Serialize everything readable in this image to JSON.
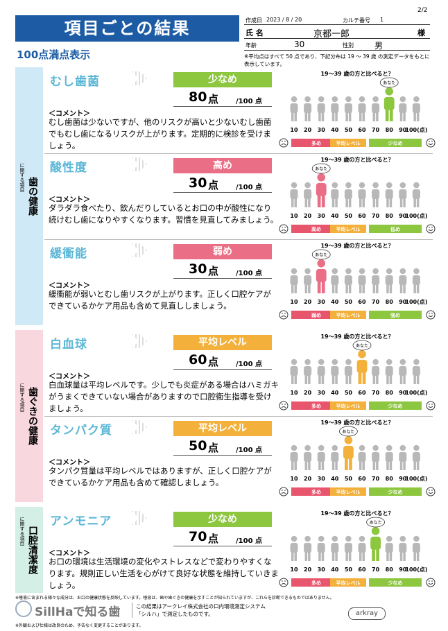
{
  "header": {
    "title": "項目ごとの結果",
    "page": "2/2",
    "subtitle": "100点満点表示",
    "info": {
      "date_label": "作成日",
      "date": "2023 / 8 / 20",
      "chart_no_label": "カルテ番号",
      "chart_no": "1",
      "name_label": "氏 名",
      "name": "京都一郎",
      "honorific": "様",
      "age_label": "年齢",
      "age": "30",
      "sex_label": "性別",
      "sex": "男"
    },
    "note": "※平均点はすべて 50 点であり、下記分布は 19 ～ 39 歳 の測定データをもとに表示しています。"
  },
  "common": {
    "comment_label": "＜コメント＞",
    "unit": "点",
    "max": "/100 点",
    "chart_title": "19～39 歳の方と比べると？",
    "you": "あなた",
    "group_prefix": "に関する項目",
    "bar_colors": [
      "#e8566e",
      "#f3b13b",
      "#8dc63f"
    ],
    "scale": [
      10,
      20,
      30,
      40,
      50,
      60,
      70,
      80,
      90,
      {
        "value": 100,
        "label": "100(点)"
      }
    ]
  },
  "groups": [
    {
      "label": "歯の健康",
      "color": "#d0e9f6",
      "items": [
        {
          "name": "むし歯菌",
          "level": "少なめ",
          "color": "#8dc63f",
          "score": 80,
          "comment": "むし歯菌は少ないですが、他のリスクが高いと少ないむし歯菌でもむし歯になるリスクが上がります。定期的に検診を受けましょう。",
          "bar": [
            "多め",
            "平均レベル",
            "少なめ"
          ]
        },
        {
          "name": "酸性度",
          "level": "高め",
          "color": "#ea6f86",
          "score": 30,
          "comment": "ダラダラ食べたり、飲んだりしているとお口の中が酸性になり続けむし歯になりやすくなります。習慣を見直してみましょう。",
          "bar": [
            "高め",
            "平均レベル",
            "低め"
          ]
        },
        {
          "name": "緩衝能",
          "level": "弱め",
          "color": "#ea6f86",
          "score": 30,
          "comment": "緩衝能が弱いとむし歯リスクが上がります。正しく口腔ケアができているかケア用品も含めて見直ししましょう。",
          "bar": [
            "弱め",
            "平均レベル",
            "強め"
          ]
        }
      ]
    },
    {
      "label": "歯ぐきの健康",
      "color": "#f9d7de",
      "items": [
        {
          "name": "白血球",
          "level": "平均レベル",
          "color": "#f3b13b",
          "score": 60,
          "comment": "白血球量は平均レベルです。少しでも炎症がある場合はハミガキがうまくできていない場合がありますので口腔衛生指導を受けましょう。",
          "bar": [
            "多め",
            "平均レベル",
            "少なめ"
          ]
        },
        {
          "name": "タンパク質",
          "level": "平均レベル",
          "color": "#f3b13b",
          "score": 50,
          "comment": "タンパク質量は平均レベルではありますが、正しく口腔ケアができているかケア用品も含めて確認しましょう。",
          "bar": [
            "多め",
            "平均レベル",
            "少なめ"
          ]
        }
      ]
    },
    {
      "label": "口腔清潔度",
      "color": "#d3efe6",
      "items": [
        {
          "name": "アンモニア",
          "level": "少なめ",
          "color": "#8dc63f",
          "score": 70,
          "comment": "お口の環境は生活環境の変化やストレスなどで変わりやすくなります。規則正しい生活を心がけて良好な状態を維持していきましょう。",
          "bar": [
            "多め",
            "平均レベル",
            "少なめ"
          ]
        }
      ]
    }
  ],
  "footer": {
    "note1": "※唾液に含まれる様々な成分は、お口の健康状態を反映しています。唾液は、歯や歯ぐきの健康を示すことが知られていますが、これらを診断できるものではありません。",
    "logo": "SillHaで知る歯",
    "about": "この結果はアークレイ株式会社の口内環境測定システム「シルハ」で測定したものです。",
    "brand": "arkray",
    "note2": "※外観および仕様は改良のため、予告なく変更することがあります。"
  }
}
